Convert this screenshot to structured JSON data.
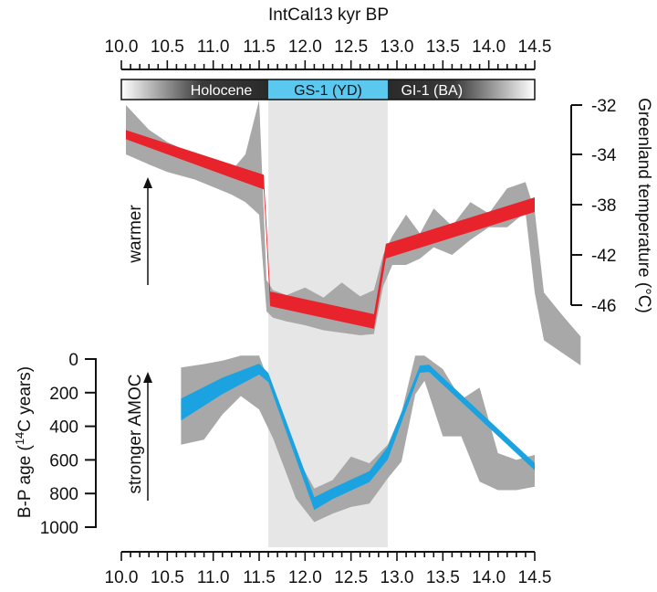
{
  "chart_data": {
    "type": "line",
    "top_axis_title": "IntCal13 kyr BP",
    "x_ticks": [
      "10.0",
      "10.5",
      "11.0",
      "11.5",
      "12.0",
      "12.5",
      "13.0",
      "13.5",
      "14.0",
      "14.5"
    ],
    "xlim": [
      10.0,
      14.5
    ],
    "periods": [
      {
        "label": "Holocene",
        "start": 10.0,
        "end": 11.6,
        "color": "#3a3a3a"
      },
      {
        "label": "GS-1 (YD)",
        "start": 11.6,
        "end": 12.9,
        "color": "#5bc8f0"
      },
      {
        "label": "GI-1 (BA)",
        "start": 12.9,
        "end": 14.5,
        "color": "#3a3a3a"
      }
    ],
    "shaded_interval": [
      11.6,
      12.9
    ],
    "panels": [
      {
        "name": "temperature",
        "ylabel": "Greenland temperature (°C)",
        "y_ticks": [
          "-32",
          "-34",
          "-38",
          "-42",
          "-46"
        ],
        "annotation": "warmer",
        "series_color": "#e8232c",
        "band_color": "#a8a8a8",
        "x": [
          10.05,
          11.55,
          11.62,
          12.75,
          12.88,
          14.5
        ],
        "y": [
          -33.2,
          -36.2,
          -45.5,
          -47.3,
          -41.7,
          -38.0
        ],
        "band_x": [
          10.05,
          10.3,
          10.5,
          10.8,
          11.0,
          11.2,
          11.35,
          11.5,
          11.58,
          11.65,
          11.8,
          12.0,
          12.2,
          12.4,
          12.6,
          12.75,
          12.85,
          12.95,
          13.1,
          13.25,
          13.4,
          13.6,
          13.8,
          14.0,
          14.2,
          14.4,
          14.5,
          14.6,
          14.8,
          15.0
        ],
        "band_upper": [
          -32.0,
          -33.0,
          -33.5,
          -34.0,
          -34.6,
          -35.3,
          -34.0,
          -31.8,
          -44.0,
          -44.8,
          -45.2,
          -44.6,
          -45.4,
          -44.2,
          -45.3,
          -44.8,
          -42.0,
          -40.5,
          -38.8,
          -40.3,
          -38.3,
          -39.7,
          -37.8,
          -38.7,
          -36.7,
          -36.2,
          -38.5,
          -45.0,
          -46.8,
          -48.5
        ],
        "band_lower": [
          -34.0,
          -34.8,
          -35.4,
          -36.0,
          -36.6,
          -37.2,
          -37.8,
          -38.8,
          -46.5,
          -47.0,
          -47.3,
          -47.6,
          -48.0,
          -48.2,
          -48.4,
          -48.3,
          -44.5,
          -42.8,
          -42.8,
          -42.3,
          -41.4,
          -42.0,
          -40.8,
          -39.8,
          -39.8,
          -38.6,
          -45.0,
          -48.8,
          -49.8,
          -50.8
        ]
      },
      {
        "name": "ventilation",
        "ylabel": "B-P age (14C years)",
        "y_ticks": [
          "0",
          "200",
          "400",
          "600",
          "800",
          "1000"
        ],
        "ylim": [
          0,
          1000
        ],
        "annotation": "stronger AMOC",
        "series_color": "#1aa3e0",
        "band_color": "#a8a8a8",
        "x": [
          10.65,
          11.1,
          11.5,
          11.6,
          12.1,
          12.3,
          12.7,
          12.9,
          13.25,
          13.35,
          14.5
        ],
        "y": [
          300,
          160,
          60,
          110,
          860,
          800,
          700,
          560,
          60,
          55,
          640
        ],
        "band_x": [
          10.65,
          10.9,
          11.1,
          11.3,
          11.5,
          11.65,
          11.9,
          12.1,
          12.3,
          12.5,
          12.7,
          12.9,
          13.05,
          13.2,
          13.3,
          13.5,
          13.7,
          13.9,
          14.1,
          14.3,
          14.5
        ],
        "band_upper": [
          50,
          30,
          10,
          -20,
          -20,
          200,
          570,
          770,
          720,
          580,
          620,
          510,
          320,
          -20,
          -20,
          60,
          240,
          170,
          560,
          600,
          570
        ],
        "band_lower": [
          510,
          480,
          330,
          220,
          300,
          470,
          830,
          970,
          920,
          880,
          860,
          710,
          610,
          210,
          130,
          460,
          460,
          730,
          780,
          780,
          760
        ]
      }
    ]
  }
}
